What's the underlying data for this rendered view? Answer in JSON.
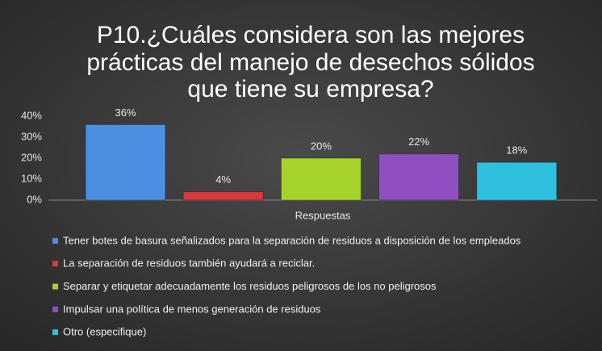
{
  "chart_data": {
    "type": "bar",
    "title": [
      "P10.¿Cuáles considera son las mejores",
      "prácticas del manejo de desechos sólidos",
      "que tiene su empresa?"
    ],
    "x_label": "Respuestas",
    "categories": [
      null
    ],
    "series": [
      {
        "name": "Tener botes de basura señalizados para la separación de residuos a disposición de los empleados",
        "color": "#4a8fe0",
        "values": [
          36
        ],
        "value_labels": [
          "36%"
        ]
      },
      {
        "name": "La separación de residuos también ayudará a reciclar.",
        "color": "#d63a3a",
        "values": [
          4
        ],
        "value_labels": [
          "4%"
        ]
      },
      {
        "name": "Separar y etiquetar adecuadamente los residuos peligrosos de los no peligrosos",
        "color": "#a6d22c",
        "values": [
          20
        ],
        "value_labels": [
          "20%"
        ]
      },
      {
        "name": "Impulsar una política de menos generación de residuos",
        "color": "#8e4fc0",
        "values": [
          22
        ],
        "value_labels": [
          "22%"
        ]
      },
      {
        "name": "Otro (especifique)",
        "color": "#2fc0de",
        "values": [
          18
        ],
        "value_labels": [
          "18%"
        ]
      }
    ],
    "ylim": [
      0,
      40
    ],
    "yticks": [
      {
        "value": 0,
        "label": "0%"
      },
      {
        "value": 10,
        "label": "10%"
      },
      {
        "value": 20,
        "label": "20%"
      },
      {
        "value": 30,
        "label": "30%"
      },
      {
        "value": 40,
        "label": "40%"
      }
    ],
    "grid": false,
    "legend": "bottom"
  }
}
